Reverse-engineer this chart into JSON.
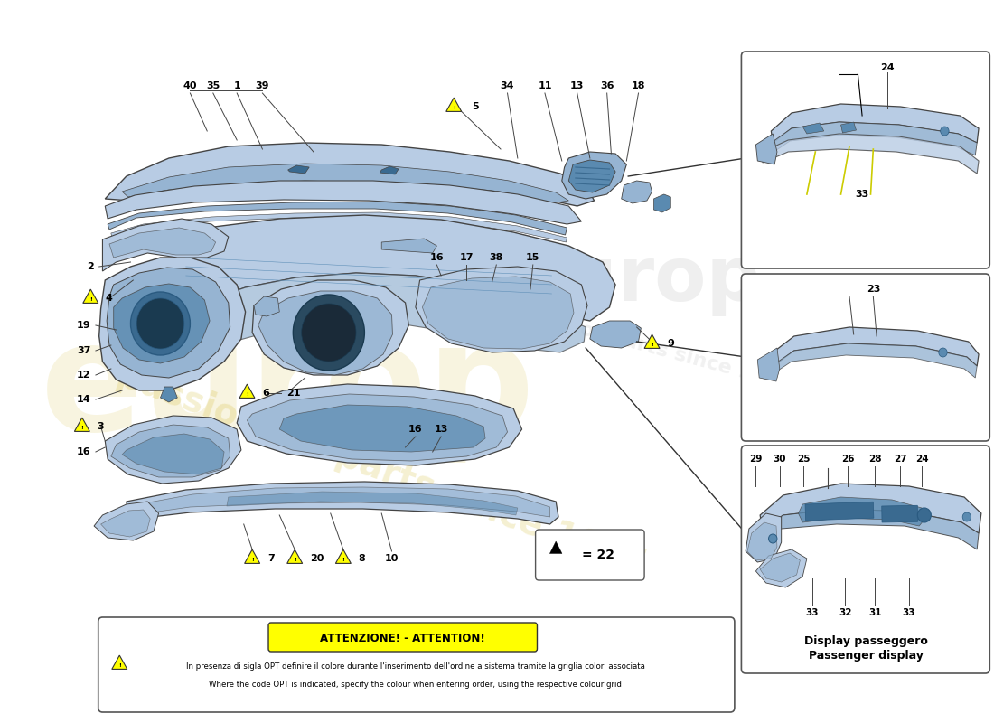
{
  "bg_color": "#ffffff",
  "pc_light": "#b8cce4",
  "pc_mid": "#96b4d2",
  "pc_dark": "#5a8ab0",
  "pc_vdark": "#3a6a90",
  "line_color": "#333333",
  "attention_text": "ATTENZIONE! - ATTENTION!",
  "attention_line1": "In presenza di sigla OPT definire il colore durante l'inserimento dell'ordine a sistema tramite la griglia colori associata",
  "attention_line2": "Where the code OPT is indicated, specify the colour when entering order, using the respective colour grid",
  "display_label1": "Display passeggero",
  "display_label2": "Passenger display",
  "wm_color": "#c8aa00"
}
